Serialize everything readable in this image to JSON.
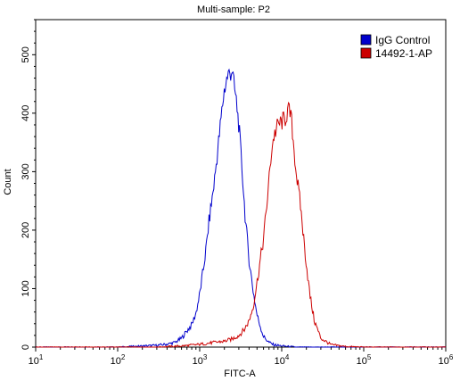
{
  "chart_data": {
    "type": "line",
    "title": "Multi-sample: P2",
    "xlabel": "FITC-A",
    "ylabel": "Count",
    "x_scale": "log",
    "xlim": [
      10,
      1000000
    ],
    "ylim": [
      0,
      560
    ],
    "x_ticks": [
      {
        "value": 10,
        "base": "10",
        "exp": "1"
      },
      {
        "value": 100,
        "base": "10",
        "exp": "2"
      },
      {
        "value": 1000,
        "base": "10",
        "exp": "3"
      },
      {
        "value": 10000,
        "base": "10",
        "exp": "4"
      },
      {
        "value": 100000,
        "base": "10",
        "exp": "5"
      },
      {
        "value": 1000000,
        "base": "10",
        "exp": "6"
      }
    ],
    "y_ticks": [
      0,
      100,
      200,
      300,
      400,
      500
    ],
    "grid": false,
    "legend_position": "top-right",
    "series": [
      {
        "name": "IgG Control",
        "color": "#0000cc",
        "x": [
          10,
          100,
          300,
          400,
          500,
          600,
          700,
          800,
          900,
          1000,
          1100,
          1200,
          1300,
          1500,
          1700,
          1900,
          2000,
          2200,
          2400,
          2500,
          2600,
          2800,
          3000,
          3300,
          3600,
          4000,
          4500,
          5000,
          5500,
          6000,
          7000,
          8000,
          10000,
          15000,
          30000,
          1000000
        ],
        "y": [
          0,
          0,
          3,
          5,
          8,
          15,
          28,
          38,
          58,
          90,
          130,
          170,
          215,
          280,
          350,
          415,
          440,
          465,
          470,
          475,
          450,
          420,
          380,
          300,
          220,
          150,
          95,
          55,
          35,
          18,
          8,
          4,
          2,
          0,
          0,
          0
        ]
      },
      {
        "name": "14492-1-AP",
        "color": "#cc0000",
        "x": [
          10,
          300,
          600,
          900,
          1200,
          1500,
          2000,
          2500,
          3000,
          3500,
          4000,
          4500,
          5000,
          5500,
          6000,
          6500,
          7000,
          7500,
          8000,
          9000,
          10000,
          11000,
          12000,
          13000,
          14000,
          15000,
          17000,
          19000,
          22000,
          25000,
          30000,
          40000,
          60000,
          100000,
          1000000
        ],
        "y": [
          0,
          0,
          2,
          4,
          6,
          8,
          10,
          14,
          20,
          30,
          45,
          70,
          110,
          150,
          185,
          235,
          285,
          335,
          360,
          380,
          385,
          390,
          405,
          395,
          345,
          300,
          240,
          170,
          90,
          45,
          15,
          4,
          1,
          0,
          0
        ]
      }
    ]
  }
}
